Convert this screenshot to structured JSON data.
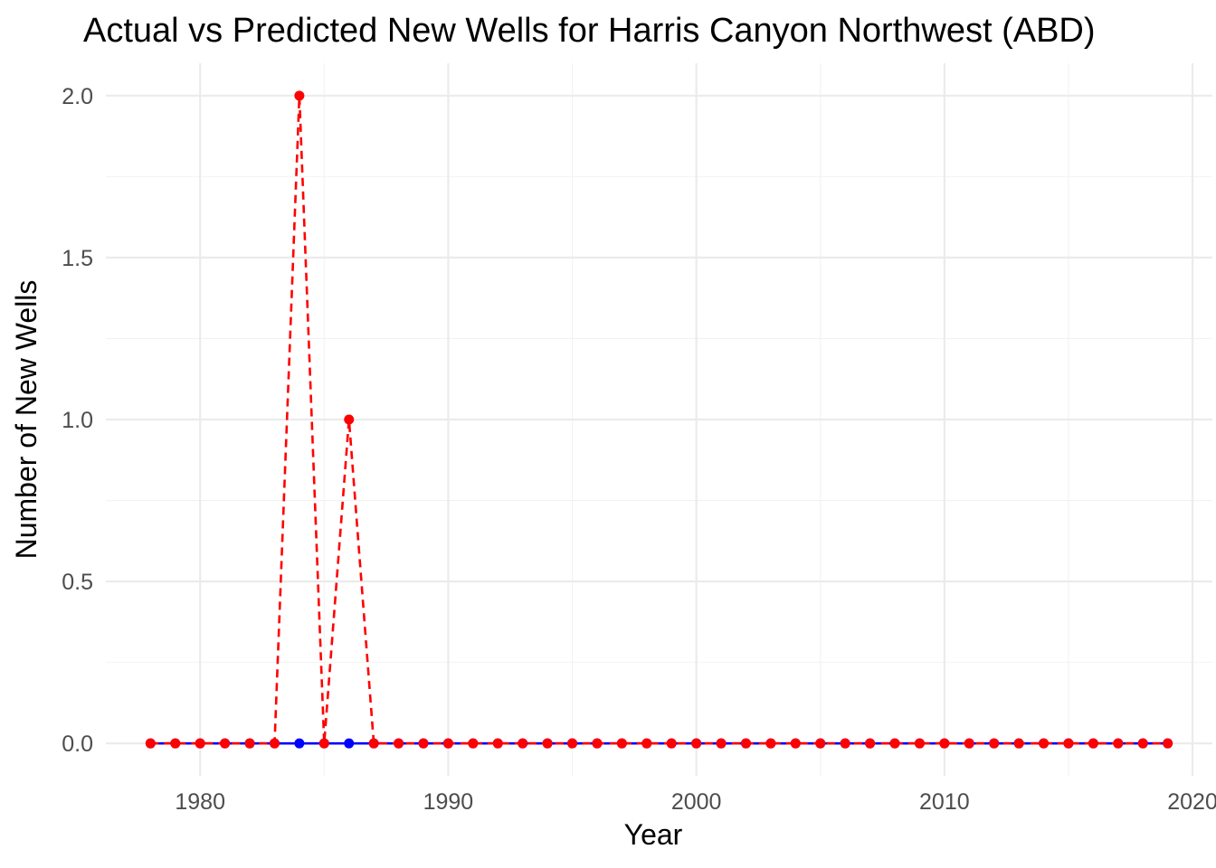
{
  "chart_data": {
    "type": "line",
    "title": "Actual vs Predicted New Wells for Harris Canyon  Northwest (ABD)",
    "xlabel": "Year",
    "ylabel": "Number of New Wells",
    "xlim": [
      1976.2,
      2020.8
    ],
    "ylim": [
      -0.1,
      2.1
    ],
    "x_ticks": [
      1980,
      1990,
      2000,
      2010,
      2020
    ],
    "y_ticks": [
      0.0,
      0.5,
      1.0,
      1.5,
      2.0
    ],
    "x_tick_labels": [
      "1980",
      "1990",
      "2000",
      "2010",
      "2020"
    ],
    "y_tick_labels": [
      "0.0",
      "0.5",
      "1.0",
      "1.5",
      "2.0"
    ],
    "grid": true,
    "legend": "none",
    "x": [
      1978,
      1979,
      1980,
      1981,
      1982,
      1983,
      1984,
      1985,
      1986,
      1987,
      1988,
      1989,
      1990,
      1991,
      1992,
      1993,
      1994,
      1995,
      1996,
      1997,
      1998,
      1999,
      2000,
      2001,
      2002,
      2003,
      2004,
      2005,
      2006,
      2007,
      2008,
      2009,
      2010,
      2011,
      2012,
      2013,
      2014,
      2015,
      2016,
      2017,
      2018,
      2019
    ],
    "series": [
      {
        "color": "#0000ff",
        "line_style": "solid",
        "values": [
          0,
          0,
          0,
          0,
          0,
          0,
          0,
          0,
          0,
          0,
          0,
          0,
          0,
          0,
          0,
          0,
          0,
          0,
          0,
          0,
          0,
          0,
          0,
          0,
          0,
          0,
          0,
          0,
          0,
          0,
          0,
          0,
          0,
          0,
          0,
          0,
          0,
          0,
          0,
          0,
          0,
          0
        ]
      },
      {
        "color": "#ff0000",
        "line_style": "dashed",
        "values": [
          0,
          0,
          0,
          0,
          0,
          0,
          2,
          0,
          1,
          0,
          0,
          0,
          0,
          0,
          0,
          0,
          0,
          0,
          0,
          0,
          0,
          0,
          0,
          0,
          0,
          0,
          0,
          0,
          0,
          0,
          0,
          0,
          0,
          0,
          0,
          0,
          0,
          0,
          0,
          0,
          0,
          0
        ]
      }
    ]
  }
}
